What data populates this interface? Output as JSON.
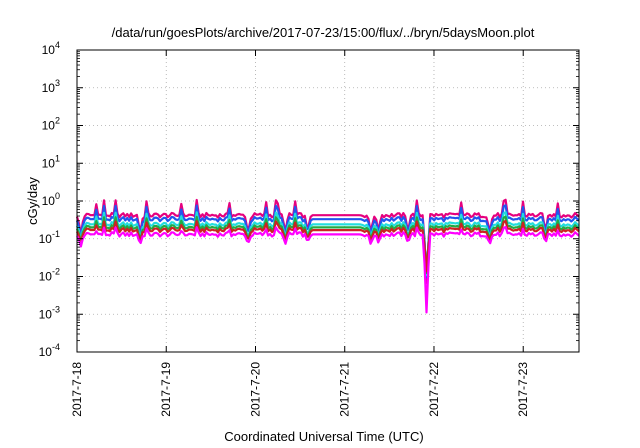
{
  "chart_data": {
    "type": "line",
    "title": "/data/run/goesPlots/archive/2017-07-23/15:00/flux/../bryn/5daysMoon.plot",
    "xlabel": "Coordinated Universal Time (UTC)",
    "ylabel": "cGy/day",
    "yscale": "log",
    "ylim": [
      0.0001,
      10000
    ],
    "xlim": [
      "2017-07-18",
      "2017-07-23 15:00"
    ],
    "x_ticks": [
      "2017-7-18",
      "2017-7-19",
      "2017-7-20",
      "2017-7-21",
      "2017-7-22",
      "2017-7-23"
    ],
    "y_ticks": [
      {
        "base": "10",
        "exp": "-4",
        "value": 0.0001
      },
      {
        "base": "10",
        "exp": "-3",
        "value": 0.001
      },
      {
        "base": "10",
        "exp": "-2",
        "value": 0.01
      },
      {
        "base": "10",
        "exp": "-1",
        "value": 0.1
      },
      {
        "base": "10",
        "exp": "0",
        "value": 1
      },
      {
        "base": "10",
        "exp": "1",
        "value": 10
      },
      {
        "base": "10",
        "exp": "2",
        "value": 100
      },
      {
        "base": "10",
        "exp": "3",
        "value": 1000
      },
      {
        "base": "10",
        "exp": "4",
        "value": 10000
      }
    ],
    "grid": true,
    "legend": "none",
    "series": [
      {
        "color": "#e6007e",
        "level": 0.42
      },
      {
        "color": "#2255ee",
        "level": 0.33
      },
      {
        "color": "#22dddd",
        "level": 0.24
      },
      {
        "color": "#22aa44",
        "level": 0.2
      },
      {
        "color": "#cc2222",
        "level": 0.17
      },
      {
        "color": "#ff00ff",
        "level": 0.13
      }
    ],
    "gap": {
      "start": "2017-07-20 15:00",
      "end": "2017-07-21 04:00"
    },
    "dips": [
      {
        "x": "2017-07-18 01:00",
        "min": 0.06
      },
      {
        "x": "2017-07-18 17:00",
        "min": 0.07
      },
      {
        "x": "2017-07-19 22:00",
        "min": 0.07
      },
      {
        "x": "2017-07-20 08:00",
        "min": 0.07
      },
      {
        "x": "2017-07-20 14:00",
        "min": 0.08
      },
      {
        "x": "2017-07-21 07:00",
        "min": 0.07
      },
      {
        "x": "2017-07-21 09:00",
        "min": 0.08
      },
      {
        "x": "2017-07-21 17:00",
        "min": 0.08
      },
      {
        "x": "2017-07-21 22:00",
        "min": 0.001
      },
      {
        "x": "2017-07-22 15:00",
        "min": 0.07
      },
      {
        "x": "2017-07-23 06:00",
        "min": 0.08
      }
    ]
  }
}
